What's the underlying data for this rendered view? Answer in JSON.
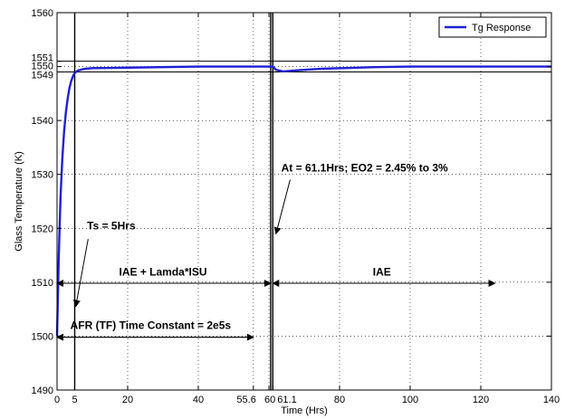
{
  "chart_data": {
    "type": "line",
    "xlabel": "Time (Hrs)",
    "ylabel": "Glass Temperature (K)",
    "xlim": [
      0,
      140
    ],
    "ylim": [
      1490,
      1560
    ],
    "xticks": [
      0,
      5,
      20,
      40,
      55.6,
      60,
      61.1,
      80,
      100,
      120,
      140
    ],
    "xtick_labels": [
      "0",
      "5",
      "20",
      "40",
      "55.6",
      "60",
      "61.1",
      "80",
      "100",
      "120",
      "140"
    ],
    "yticks": [
      1490,
      1500,
      1510,
      1520,
      1530,
      1540,
      1549,
      1550,
      1551,
      1560
    ],
    "ytick_labels": [
      "1490",
      "1500",
      "1510",
      "1520",
      "1530",
      "1540",
      "1549",
      "1550",
      "1551",
      "1560"
    ],
    "grid": true,
    "legend_position": "top-right",
    "series": [
      {
        "name": "Tg Response",
        "color": "#1f1fd6",
        "points": [
          [
            0,
            1500
          ],
          [
            0.5,
            1515
          ],
          [
            1,
            1526
          ],
          [
            1.5,
            1533
          ],
          [
            2,
            1538
          ],
          [
            2.5,
            1541.5
          ],
          [
            3,
            1544
          ],
          [
            3.5,
            1546
          ],
          [
            4,
            1547.3
          ],
          [
            4.5,
            1548.2
          ],
          [
            5,
            1548.8
          ],
          [
            6,
            1549.3
          ],
          [
            8,
            1549.6
          ],
          [
            10,
            1549.7
          ],
          [
            20,
            1549.8
          ],
          [
            40,
            1550
          ],
          [
            55.6,
            1550
          ],
          [
            60,
            1550
          ],
          [
            61.1,
            1550
          ],
          [
            62,
            1549.4
          ],
          [
            64,
            1549.1
          ],
          [
            68,
            1549.3
          ],
          [
            75,
            1549.6
          ],
          [
            90,
            1549.9
          ],
          [
            100,
            1550
          ],
          [
            120,
            1550
          ],
          [
            140,
            1550
          ]
        ]
      }
    ],
    "vlines": [
      5,
      60.5,
      61.1
    ],
    "hlines": [
      1549,
      1551
    ],
    "annotations": [
      {
        "id": "ts",
        "text": "Ts = 5Hrs",
        "x": 8.5,
        "y": 1519.8,
        "arrow_to": [
          5.3,
          1505.5
        ],
        "arrow_from": [
          8.8,
          1518
        ]
      },
      {
        "id": "at",
        "text": "At = 61.1Hrs; EO2 = 2.45% to 3%",
        "x": 63.5,
        "y": 1530.5,
        "arrow_to": [
          62,
          1519
        ],
        "arrow_from": [
          66,
          1529
        ]
      },
      {
        "id": "iae_isu",
        "text": "IAE + Lamda*ISU",
        "x": 30,
        "y": 1511.2,
        "span": [
          0,
          60.5
        ],
        "span_y": 1509.8
      },
      {
        "id": "iae",
        "text": "IAE",
        "x": 92,
        "y": 1511.2,
        "span": [
          61.1,
          124
        ],
        "span_y": 1509.8
      },
      {
        "id": "afr",
        "text": "AFR (TF) Time Constant = 2e5s",
        "x": 26.5,
        "y": 1501.3,
        "span": [
          0,
          55.6
        ],
        "span_y": 1499.8
      }
    ]
  }
}
